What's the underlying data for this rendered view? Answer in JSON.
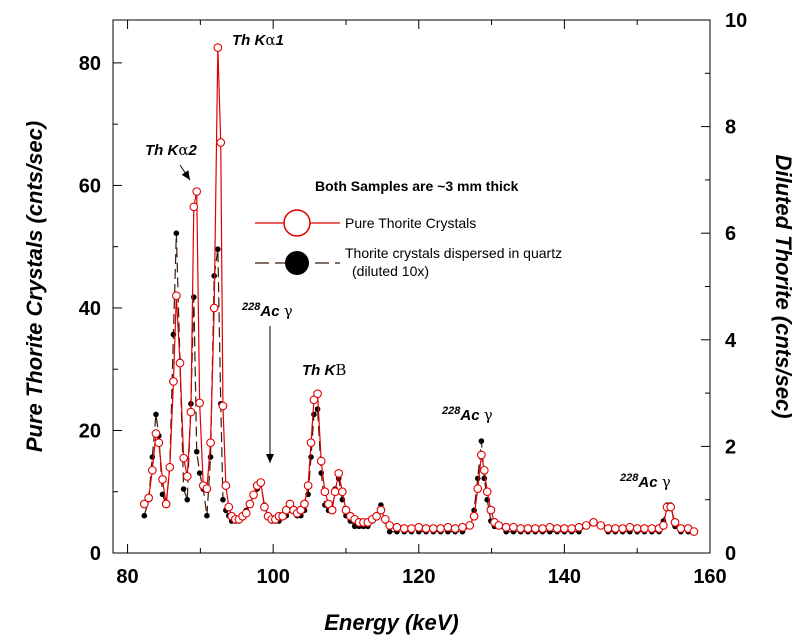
{
  "chart_data": {
    "type": "line",
    "xlabel": "Energy (keV)",
    "ylabel_left": "Pure Thorite Crystals (cnts/sec)",
    "ylabel_right": "Diluted Thorite (cnts/sec)",
    "xlim": [
      78,
      160
    ],
    "ylim_left": [
      0,
      87
    ],
    "ylim_right": [
      0,
      10
    ],
    "x_ticks": [
      "80",
      "100",
      "120",
      "140",
      "160"
    ],
    "y_ticks_left": [
      "0",
      "20",
      "40",
      "60",
      "80"
    ],
    "y_ticks_right": [
      "0",
      "2",
      "4",
      "6",
      "8",
      "10"
    ],
    "legend_title": "Both Samples are ~3 mm thick",
    "series": [
      {
        "name": "Pure Thorite Crystals",
        "axis": "left",
        "color": "#e00000",
        "x": [
          82.3,
          82.9,
          83.4,
          83.9,
          84.3,
          84.8,
          85.3,
          85.8,
          86.3,
          86.7,
          87.2,
          87.7,
          88.2,
          88.7,
          89.1,
          89.5,
          89.9,
          90.4,
          90.9,
          91.4,
          91.9,
          92.4,
          92.8,
          93.1,
          93.5,
          93.9,
          94.3,
          94.8,
          95.3,
          95.8,
          96.3,
          96.8,
          97.3,
          97.8,
          98.3,
          98.8,
          99.3,
          99.8,
          100.3,
          100.8,
          101.3,
          101.8,
          102.3,
          102.8,
          103.3,
          103.8,
          104.3,
          104.8,
          105.2,
          105.6,
          106.1,
          106.6,
          107.1,
          107.6,
          108.1,
          108.5,
          109.0,
          109.5,
          110.0,
          110.6,
          111.2,
          111.8,
          112.4,
          113.0,
          113.6,
          114.2,
          114.8,
          115.4,
          116.0,
          117.0,
          118.0,
          119.0,
          120.0,
          121.0,
          122.0,
          123.0,
          124.0,
          125.0,
          126.0,
          127.0,
          127.6,
          128.1,
          128.6,
          129.0,
          129.4,
          129.9,
          130.4,
          131.0,
          132.0,
          133.0,
          134.0,
          135.0,
          136.0,
          137.0,
          138.0,
          139.0,
          140.0,
          141.0,
          142.0,
          143.0,
          144.0,
          145.0,
          146.0,
          147.0,
          148.0,
          149.0,
          150.0,
          151.0,
          152.0,
          153.0,
          153.6,
          154.1,
          154.6,
          155.2,
          156.0,
          157.0,
          157.8
        ],
        "values": [
          8,
          9,
          13.5,
          19.5,
          18,
          12,
          8,
          14,
          28,
          42,
          31,
          15.5,
          12.5,
          23,
          56.5,
          59,
          24.5,
          11,
          10.5,
          18,
          40,
          82.5,
          67,
          24,
          11,
          7.5,
          6,
          5.5,
          5.5,
          6,
          6.5,
          8,
          9.5,
          11,
          11.5,
          7.5,
          6,
          5.5,
          5.5,
          6,
          6,
          7,
          8,
          7,
          6.5,
          7,
          8,
          11,
          18,
          25,
          26,
          15,
          10,
          8,
          7,
          10,
          13,
          10,
          7,
          6,
          5.5,
          5,
          5,
          5,
          5.5,
          6,
          7,
          5.5,
          4.5,
          4.2,
          4,
          4,
          4.2,
          4,
          4,
          4,
          4.2,
          4,
          4.2,
          4.5,
          6,
          10.5,
          16,
          13.5,
          10,
          7,
          5,
          4.5,
          4.2,
          4.2,
          4,
          4,
          4,
          4,
          4.2,
          4,
          4,
          4,
          4.2,
          4.5,
          5,
          4.5,
          4,
          4,
          4,
          4.2,
          4,
          4,
          4,
          4,
          4.5,
          7.5,
          7.5,
          5,
          4,
          4,
          3.5
        ]
      },
      {
        "name": "Thorite crystals dispersed in quartz (diluted 10x)",
        "axis": "right",
        "color": "#000000",
        "x": [
          82.3,
          82.9,
          83.4,
          83.9,
          84.3,
          84.8,
          85.3,
          85.8,
          86.3,
          86.7,
          87.2,
          87.7,
          88.2,
          88.7,
          89.1,
          89.5,
          89.9,
          90.4,
          90.9,
          91.4,
          91.9,
          92.4,
          92.8,
          93.1,
          93.5,
          93.9,
          94.3,
          94.8,
          95.3,
          95.8,
          96.3,
          96.8,
          97.3,
          97.8,
          98.3,
          98.8,
          99.3,
          99.8,
          100.3,
          100.8,
          101.3,
          101.8,
          102.3,
          102.8,
          103.3,
          103.8,
          104.3,
          104.8,
          105.2,
          105.6,
          106.1,
          106.6,
          107.1,
          107.6,
          108.1,
          108.5,
          109.0,
          109.5,
          110.0,
          110.6,
          111.2,
          111.8,
          112.4,
          113.0,
          113.6,
          114.2,
          114.8,
          115.4,
          116.0,
          117.0,
          118.0,
          119.0,
          120.0,
          121.0,
          122.0,
          123.0,
          124.0,
          125.0,
          126.0,
          127.0,
          127.6,
          128.1,
          128.6,
          129.0,
          129.4,
          129.9,
          130.4,
          131.0,
          132.0,
          133.0,
          134.0,
          135.0,
          136.0,
          137.0,
          138.0,
          139.0,
          140.0,
          141.0,
          142.0,
          143.0,
          144.0,
          145.0,
          146.0,
          147.0,
          148.0,
          149.0,
          150.0,
          151.0,
          152.0,
          153.0,
          153.6,
          154.1,
          154.6,
          155.2,
          156.0,
          157.0,
          157.8
        ],
        "values": [
          0.7,
          1.0,
          1.8,
          2.6,
          2.2,
          1.1,
          0.9,
          1.6,
          4.1,
          6.0,
          3.6,
          1.2,
          1.0,
          2.8,
          4.8,
          1.9,
          1.5,
          1.2,
          0.7,
          1.8,
          5.2,
          5.7,
          2.8,
          1.0,
          0.8,
          0.7,
          0.6,
          0.6,
          0.6,
          0.7,
          0.8,
          0.9,
          1.1,
          1.2,
          1.3,
          0.9,
          0.7,
          0.6,
          0.6,
          0.6,
          0.7,
          0.7,
          0.8,
          0.8,
          0.7,
          0.7,
          0.8,
          1.1,
          1.8,
          2.6,
          2.7,
          1.5,
          0.9,
          0.8,
          0.8,
          1.2,
          1.4,
          1.0,
          0.7,
          0.6,
          0.5,
          0.5,
          0.5,
          0.5,
          0.6,
          0.7,
          0.9,
          0.6,
          0.4,
          0.4,
          0.4,
          0.4,
          0.4,
          0.4,
          0.4,
          0.4,
          0.4,
          0.4,
          0.4,
          0.5,
          0.8,
          1.4,
          2.1,
          1.4,
          1.0,
          0.6,
          0.5,
          0.5,
          0.4,
          0.4,
          0.4,
          0.4,
          0.4,
          0.4,
          0.4,
          0.4,
          0.4,
          0.4,
          0.4,
          0.5,
          0.6,
          0.5,
          0.4,
          0.4,
          0.4,
          0.4,
          0.4,
          0.4,
          0.4,
          0.4,
          0.6,
          0.9,
          0.9,
          0.5,
          0.4,
          0.4,
          0.4
        ]
      }
    ],
    "annotations": [
      {
        "id": "th-ka1",
        "label": "Th K",
        "greek": "α",
        "suffix": "1",
        "x": 93.0,
        "y": 82.5
      },
      {
        "id": "th-ka2",
        "label": "Th K",
        "greek": "α",
        "suffix": "2",
        "x": 89.5,
        "y": 59
      },
      {
        "id": "ac228-1",
        "sup": "228",
        "label": "Ac",
        "greek": "γ",
        "x": 99.5,
        "y": 11.5
      },
      {
        "id": "th-kb",
        "label": "Th K",
        "greek": "B",
        "x": 105.6,
        "y": 26
      },
      {
        "id": "ac228-2",
        "sup": "228",
        "label": "Ac",
        "greek": "γ",
        "x": 129.0,
        "y": 16
      },
      {
        "id": "ac228-3",
        "sup": "228",
        "label": "Ac",
        "greek": "γ",
        "x": 154.0,
        "y": 7.5
      }
    ]
  }
}
